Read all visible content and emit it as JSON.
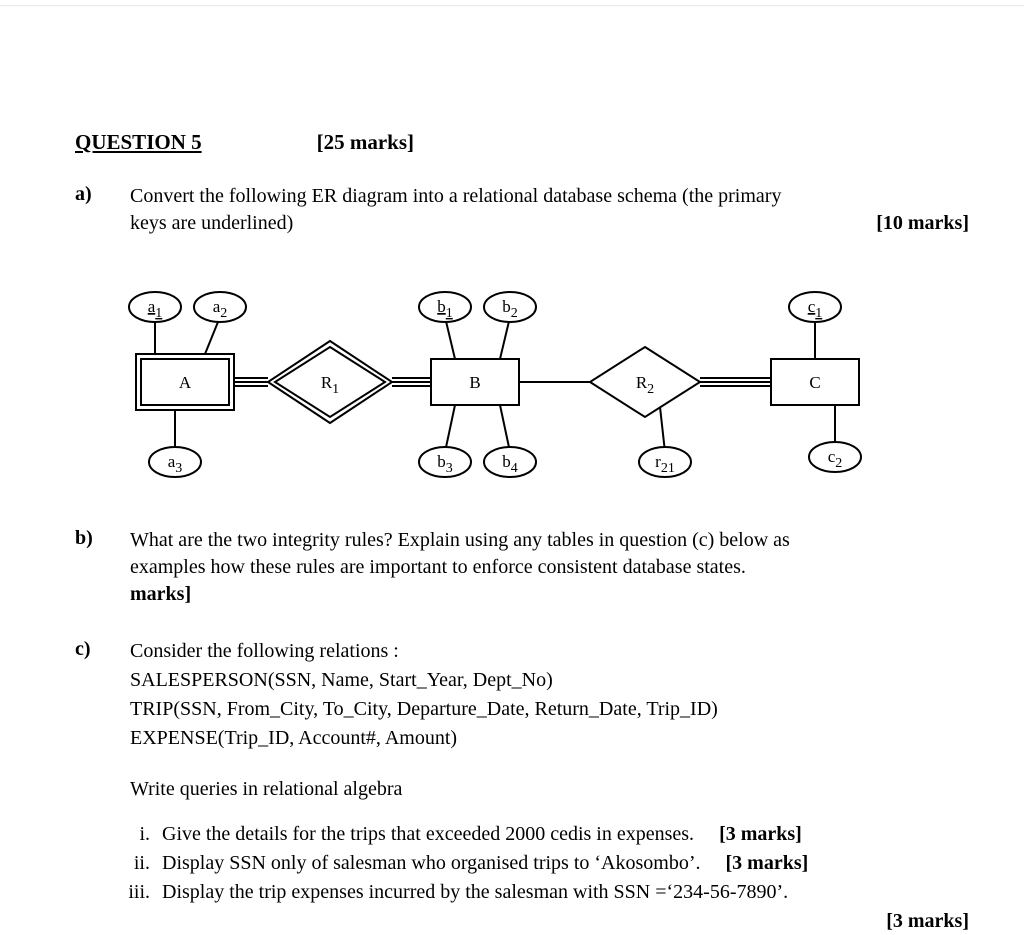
{
  "header": {
    "title": "QUESTION 5",
    "total_marks": "[25 marks]"
  },
  "partA": {
    "label": "a)",
    "text_1": "Convert the following ER diagram into a relational database schema (the primary",
    "text_2": "keys are underlined)",
    "marks": "[10 marks]"
  },
  "er_diagram": {
    "entities": {
      "A": {
        "label": "A",
        "weak": true,
        "attrs": [
          "a1",
          "a2",
          "a3"
        ],
        "key_attrs": [
          "a1"
        ]
      },
      "B": {
        "label": "B",
        "weak": false,
        "attrs": [
          "b1",
          "b2",
          "b3",
          "b4"
        ],
        "key_attrs": [
          "b1"
        ]
      },
      "C": {
        "label": "C",
        "weak": false,
        "attrs": [
          "c1",
          "c2"
        ],
        "key_attrs": [
          "c1"
        ]
      }
    },
    "relationships": {
      "R1": {
        "label": "R1",
        "identifying": true,
        "between": [
          "A",
          "B"
        ],
        "attrs": []
      },
      "R2": {
        "label": "R2",
        "identifying": false,
        "between": [
          "B",
          "C"
        ],
        "attrs": [
          "r21"
        ]
      }
    },
    "style": {
      "stroke": "#000000",
      "stroke_width": 2,
      "font_family": "Times",
      "attr_oval_rx": 26,
      "attr_oval_ry": 15,
      "entity_w": 88,
      "entity_h": 46,
      "diamond_w": 110,
      "diamond_h": 70,
      "background": "#ffffff"
    }
  },
  "partB": {
    "label": "b)",
    "line1": "What are the two integrity rules? Explain using any tables in question (c) below as",
    "line2": "examples how these rules are important to enforce consistent database states.",
    "marks": "marks]"
  },
  "partC": {
    "label": "c)",
    "intro": "Consider the following relations :",
    "relations": [
      "SALESPERSON(SSN, Name, Start_Year, Dept_No)",
      "TRIP(SSN, From_City, To_City, Departure_Date, Return_Date, Trip_ID)",
      "EXPENSE(Trip_ID, Account#, Amount)"
    ],
    "write": "Write queries in relational algebra",
    "subs": [
      {
        "num": "i.",
        "text": "Give the details for the trips that exceeded 2000 cedis in expenses.",
        "marks": "[3 marks]"
      },
      {
        "num": "ii.",
        "text": "Display SSN only of salesman who organised trips to ‘Akosombo’.",
        "marks": "[3 marks]"
      },
      {
        "num": "iii.",
        "text": "Display the trip expenses incurred by the salesman with SSN =‘234-56-7890’.",
        "marks": ""
      }
    ],
    "final_marks": "[3 marks]"
  }
}
